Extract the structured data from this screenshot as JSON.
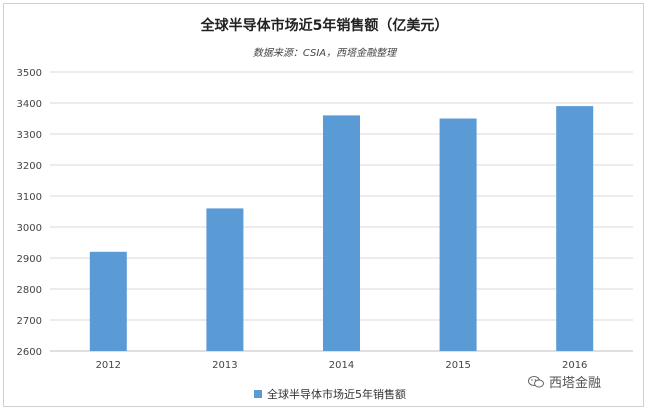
{
  "chart_data": {
    "type": "bar",
    "title": "全球半导体市场近5年销售额（亿美元）",
    "subtitle": "数据来源：CSIA，西塔金融整理",
    "categories": [
      "2012",
      "2013",
      "2014",
      "2015",
      "2016"
    ],
    "series": [
      {
        "name": "全球半导体市场近5年销售额",
        "values": [
          2920,
          3060,
          3360,
          3350,
          3390
        ],
        "color": "#5b9bd5"
      }
    ],
    "ylim": [
      2600,
      3500
    ],
    "yticks": [
      "2600",
      "2700",
      "2800",
      "2900",
      "3000",
      "3100",
      "3200",
      "3300",
      "3400",
      "3500"
    ],
    "grid": true,
    "legend": "bottom"
  },
  "watermark": {
    "text": "西塔金融",
    "icon": "wechat-icon"
  }
}
